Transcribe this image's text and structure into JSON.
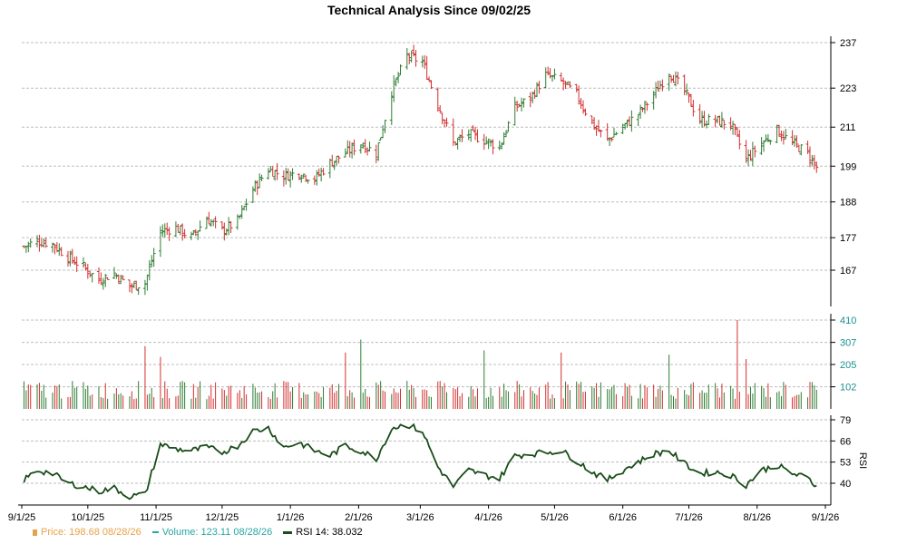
{
  "chart_data": {
    "title": "Technical Analysis Since 09/02/25",
    "x_labels": [
      "9/1/25",
      "10/1/25",
      "11/1/25",
      "12/1/25",
      "1/1/26",
      "2/1/26",
      "3/1/26",
      "4/1/26",
      "5/1/26",
      "6/1/26",
      "7/1/26",
      "8/1/26",
      "9/1/26"
    ],
    "panels": [
      {
        "name": "price",
        "type": "ohlc",
        "yticks": [
          167,
          177,
          188,
          199,
          211,
          223,
          237
        ],
        "ylim": [
          158,
          240
        ],
        "up_color": "#2e7d32",
        "down_color": "#d32f2f",
        "close_anchors": [
          [
            "9/1/25",
            174
          ],
          [
            "9/8/25",
            176
          ],
          [
            "9/15/25",
            175
          ],
          [
            "9/22/25",
            171
          ],
          [
            "9/29/25",
            168
          ],
          [
            "10/6/25",
            164
          ],
          [
            "10/13/25",
            166
          ],
          [
            "10/20/25",
            162
          ],
          [
            "10/27/25",
            163
          ],
          [
            "11/3/25",
            179
          ],
          [
            "11/10/25",
            180
          ],
          [
            "11/17/25",
            177
          ],
          [
            "11/24/25",
            183
          ],
          [
            "12/1/25",
            179
          ],
          [
            "12/8/25",
            182
          ],
          [
            "12/15/25",
            192
          ],
          [
            "12/22/25",
            198
          ],
          [
            "12/29/25",
            196
          ],
          [
            "1/5/26",
            197
          ],
          [
            "1/12/26",
            195
          ],
          [
            "1/19/26",
            200
          ],
          [
            "1/26/26",
            203
          ],
          [
            "2/2/26",
            206
          ],
          [
            "2/9/26",
            203
          ],
          [
            "2/16/26",
            222
          ],
          [
            "2/23/26",
            233
          ],
          [
            "3/2/26",
            231
          ],
          [
            "3/9/26",
            218
          ],
          [
            "3/16/26",
            206
          ],
          [
            "3/23/26",
            209
          ],
          [
            "3/30/26",
            207
          ],
          [
            "4/6/26",
            205
          ],
          [
            "4/13/26",
            217
          ],
          [
            "4/20/26",
            220
          ],
          [
            "4/27/26",
            227
          ],
          [
            "5/4/26",
            225
          ],
          [
            "5/11/26",
            221
          ],
          [
            "5/18/26",
            212
          ],
          [
            "5/25/26",
            207
          ],
          [
            "6/1/26",
            211
          ],
          [
            "6/8/26",
            215
          ],
          [
            "6/15/26",
            221
          ],
          [
            "6/22/26",
            228
          ],
          [
            "6/29/26",
            222
          ],
          [
            "7/6/26",
            213
          ],
          [
            "7/13/26",
            213
          ],
          [
            "7/20/26",
            212
          ],
          [
            "7/27/26",
            201
          ],
          [
            "8/3/26",
            206
          ],
          [
            "8/10/26",
            210
          ],
          [
            "8/17/26",
            206
          ],
          [
            "8/24/26",
            203
          ],
          [
            "8/28/26",
            198.68
          ]
        ]
      },
      {
        "name": "volume",
        "type": "bar",
        "yticks": [
          102,
          205,
          307,
          410
        ],
        "ylim": [
          0,
          410
        ],
        "typical_value": 100,
        "spikes": [
          [
            "10/27/25",
            290
          ],
          [
            "11/3/25",
            240
          ],
          [
            "1/26/26",
            260
          ],
          [
            "2/2/26",
            320
          ],
          [
            "3/30/26",
            270
          ],
          [
            "5/4/26",
            260
          ],
          [
            "6/22/26",
            250
          ],
          [
            "7/24/26",
            410
          ],
          [
            "7/27/26",
            230
          ]
        ]
      },
      {
        "name": "rsi",
        "type": "line",
        "label": "RSI",
        "yticks": [
          40,
          53,
          66,
          79
        ],
        "ylim": [
          29,
          79
        ],
        "color": "#1a4d1a",
        "anchors": [
          [
            "9/1/25",
            41
          ],
          [
            "9/8/25",
            48
          ],
          [
            "9/15/25",
            46
          ],
          [
            "9/22/25",
            40
          ],
          [
            "9/29/25",
            38
          ],
          [
            "10/6/25",
            35
          ],
          [
            "10/13/25",
            37
          ],
          [
            "10/20/25",
            32
          ],
          [
            "10/27/25",
            33
          ],
          [
            "11/3/25",
            64
          ],
          [
            "11/10/25",
            61
          ],
          [
            "11/17/25",
            60
          ],
          [
            "11/24/25",
            62
          ],
          [
            "12/1/25",
            59
          ],
          [
            "12/8/25",
            63
          ],
          [
            "12/15/25",
            72
          ],
          [
            "12/22/25",
            74
          ],
          [
            "12/29/25",
            62
          ],
          [
            "1/5/26",
            65
          ],
          [
            "1/12/26",
            60
          ],
          [
            "1/19/26",
            57
          ],
          [
            "1/26/26",
            63
          ],
          [
            "2/2/26",
            60
          ],
          [
            "2/9/26",
            55
          ],
          [
            "2/16/26",
            74
          ],
          [
            "2/23/26",
            76
          ],
          [
            "3/2/26",
            72
          ],
          [
            "3/9/26",
            50
          ],
          [
            "3/16/26",
            38
          ],
          [
            "3/23/26",
            48
          ],
          [
            "3/30/26",
            45
          ],
          [
            "4/6/26",
            43
          ],
          [
            "4/13/26",
            57
          ],
          [
            "4/20/26",
            58
          ],
          [
            "4/27/26",
            59
          ],
          [
            "5/4/26",
            60
          ],
          [
            "5/11/26",
            54
          ],
          [
            "5/18/26",
            47
          ],
          [
            "5/25/26",
            42
          ],
          [
            "6/1/26",
            48
          ],
          [
            "6/8/26",
            53
          ],
          [
            "6/15/26",
            58
          ],
          [
            "6/22/26",
            60
          ],
          [
            "6/29/26",
            52
          ],
          [
            "7/6/26",
            46
          ],
          [
            "7/13/26",
            47
          ],
          [
            "7/20/26",
            45
          ],
          [
            "7/27/26",
            39
          ],
          [
            "8/3/26",
            48
          ],
          [
            "8/10/26",
            51
          ],
          [
            "8/17/26",
            46
          ],
          [
            "8/24/26",
            43
          ],
          [
            "8/28/26",
            38.032
          ]
        ]
      }
    ],
    "legend": {
      "price": "Price: 198.68  08/28/26",
      "volume": "Volume: 123.11  08/28/26",
      "rsi": "RSI 14: 38.032"
    },
    "grid": true,
    "legend_position": "bottom-left"
  }
}
